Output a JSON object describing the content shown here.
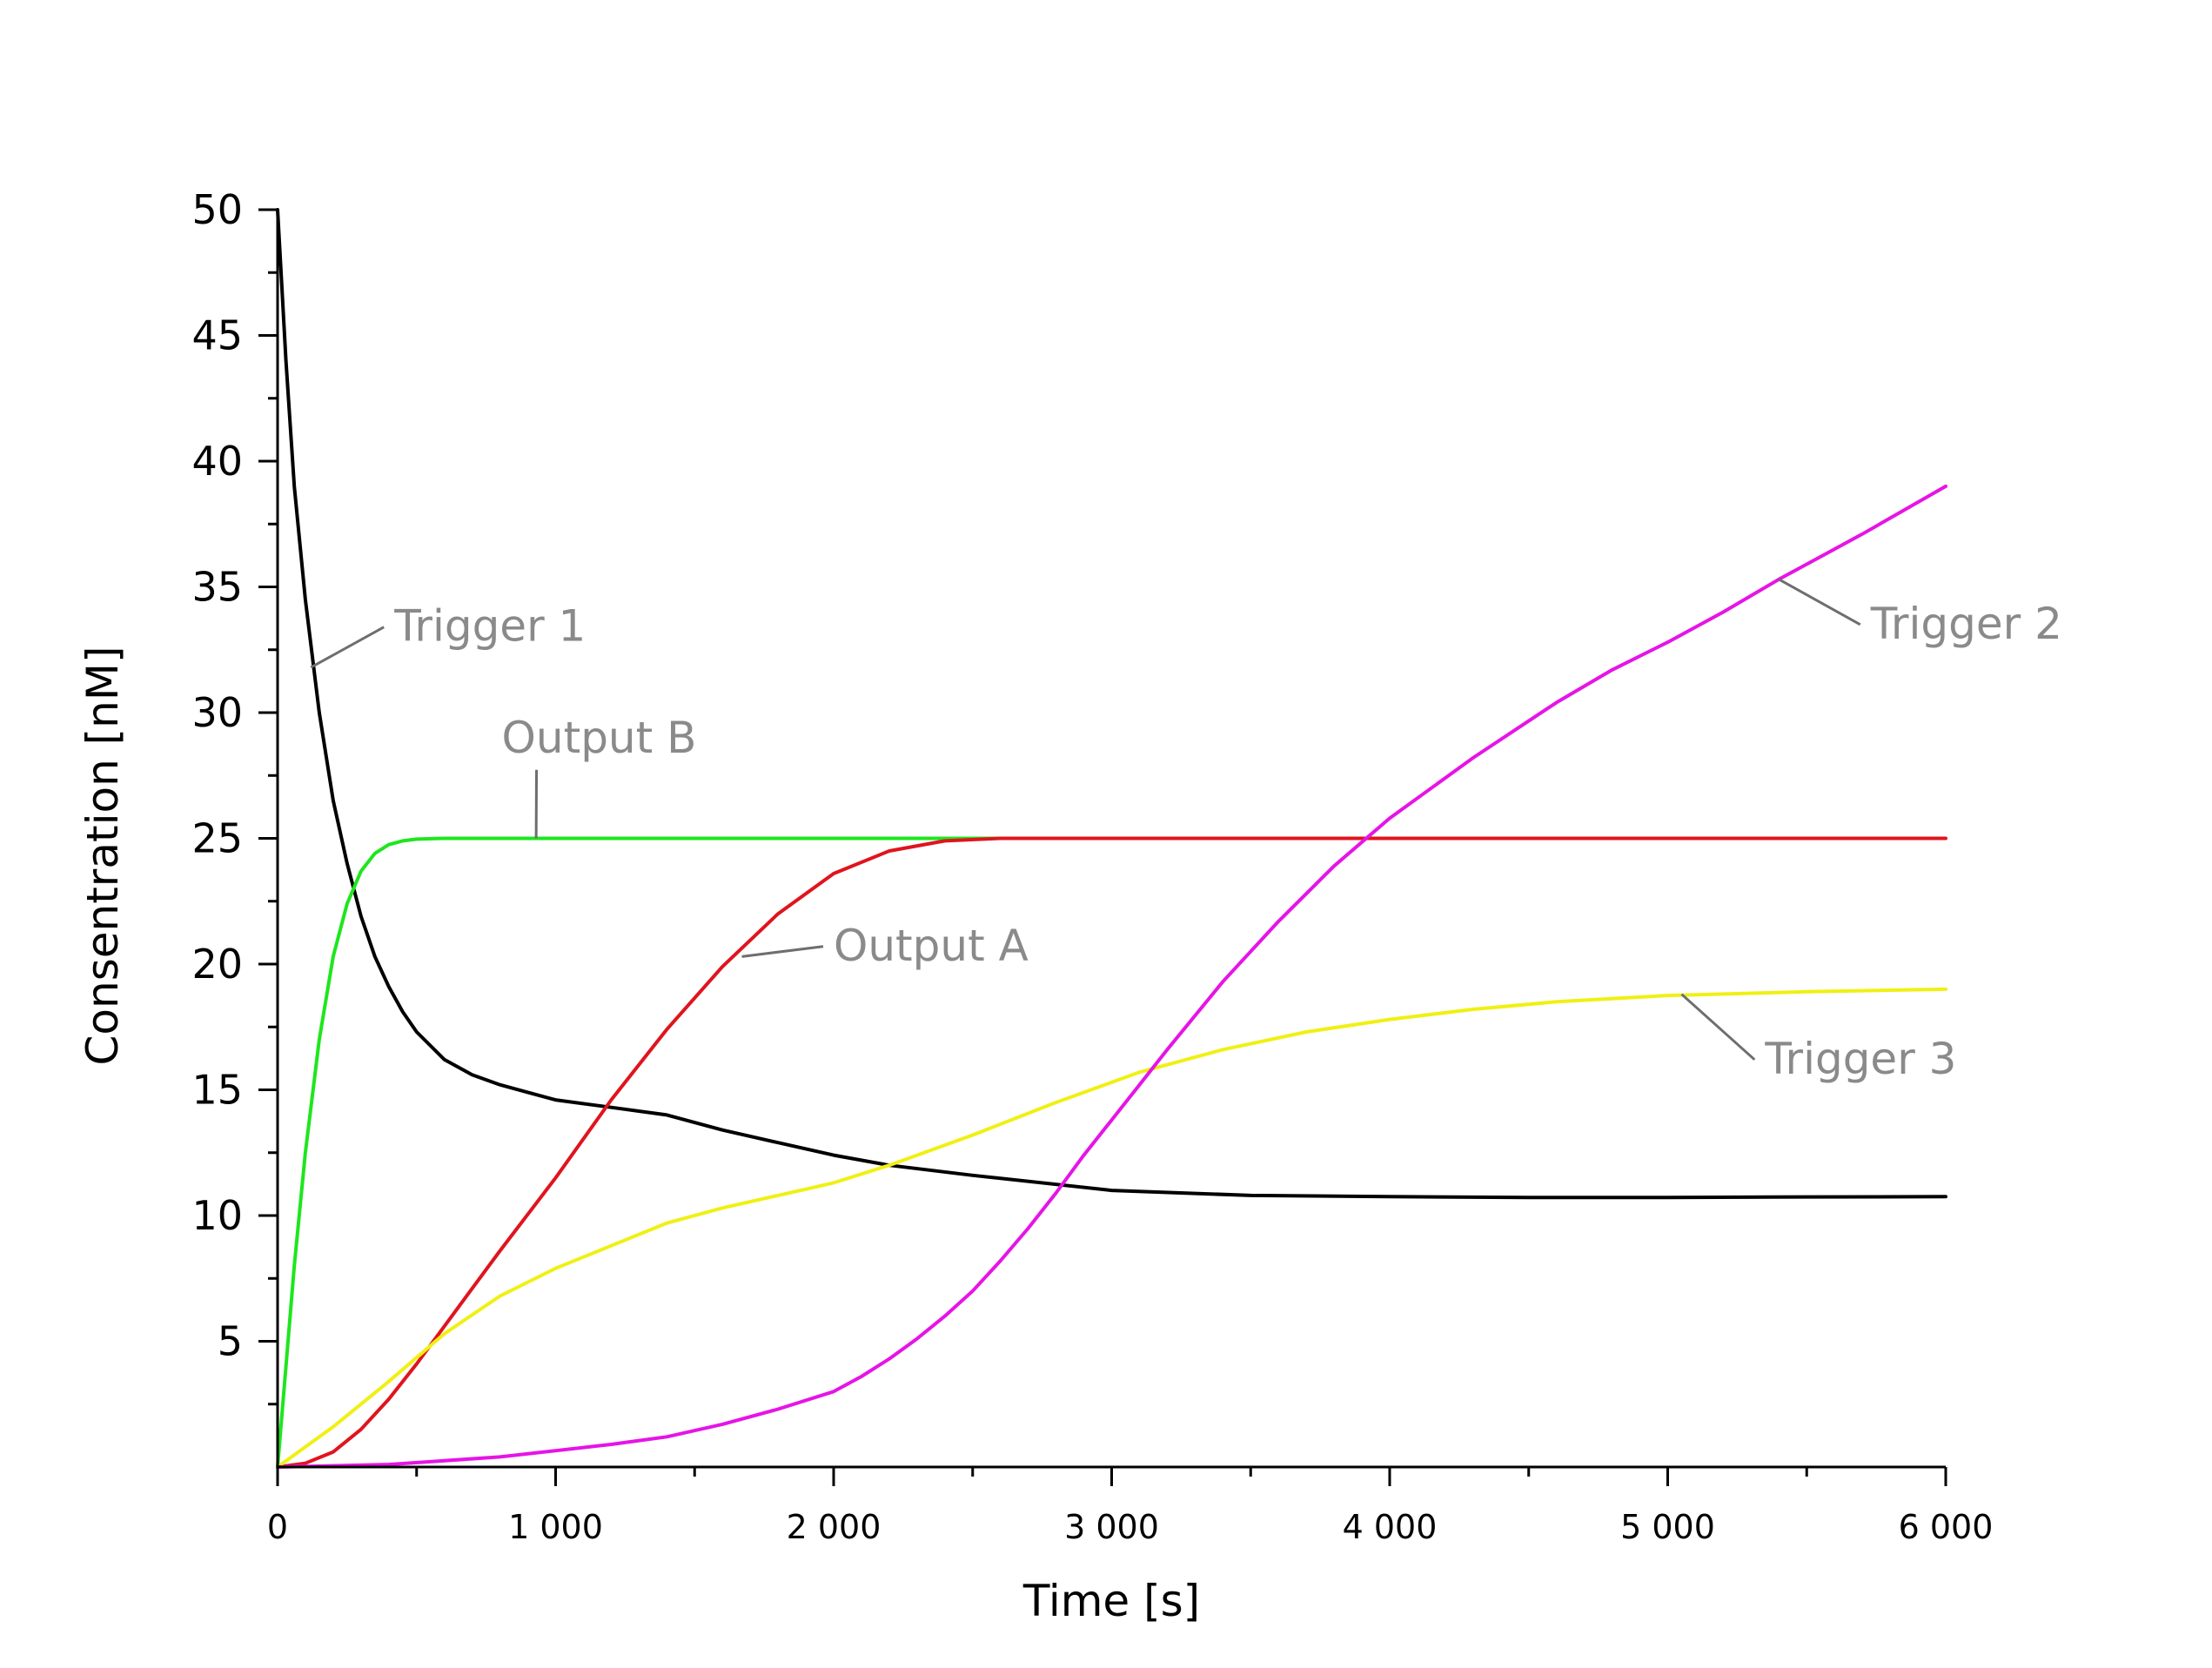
{
  "chart_data": {
    "type": "line",
    "title": "",
    "xlabel": "Time [s]",
    "ylabel": "Consentration [nM]",
    "xlim": [
      0,
      6000
    ],
    "ylim": [
      0,
      50
    ],
    "xticks": [
      0,
      1000,
      2000,
      3000,
      4000,
      5000,
      6000
    ],
    "xtick_labels": [
      "0",
      "1 000",
      "2 000",
      "3 000",
      "4 000",
      "5 000",
      "6 000"
    ],
    "yticks": [
      5,
      10,
      15,
      20,
      25,
      30,
      35,
      40,
      45,
      50
    ],
    "ytick_labels": [
      "5",
      "10",
      "15",
      "20",
      "25",
      "30",
      "35",
      "40",
      "45",
      "50"
    ],
    "grid": false,
    "legend": "none",
    "series": [
      {
        "name": "Trigger 1",
        "color": "#000000",
        "x": [
          0,
          30,
          60,
          100,
          150,
          200,
          250,
          300,
          350,
          400,
          450,
          500,
          600,
          700,
          800,
          900,
          1000,
          1200,
          1400,
          1600,
          1800,
          2000,
          2200,
          2500,
          3000,
          3500,
          4000,
          4500,
          5000,
          5500,
          6000
        ],
        "y": [
          50,
          44,
          39,
          34.5,
          30,
          26.5,
          24,
          21.9,
          20.3,
          19.1,
          18.1,
          17.3,
          16.2,
          15.6,
          15.2,
          14.9,
          14.6,
          14.3,
          14.0,
          13.4,
          12.9,
          12.4,
          12.0,
          11.6,
          11.0,
          10.8,
          10.75,
          10.72,
          10.72,
          10.74,
          10.75
        ]
      },
      {
        "name": "Output B",
        "color": "#1ee61e",
        "x": [
          0,
          30,
          60,
          100,
          150,
          200,
          250,
          300,
          350,
          400,
          450,
          500,
          600,
          700,
          800,
          1000,
          1500,
          2000,
          2500,
          3000
        ],
        "y": [
          0,
          4,
          8,
          12.5,
          17,
          20.3,
          22.4,
          23.7,
          24.4,
          24.75,
          24.9,
          24.97,
          25,
          25,
          25,
          25,
          25,
          25,
          25,
          25
        ]
      },
      {
        "name": "Output A",
        "color": "#e0141e",
        "x": [
          0,
          100,
          200,
          300,
          400,
          500,
          600,
          700,
          800,
          1000,
          1200,
          1400,
          1600,
          1800,
          2000,
          2200,
          2400,
          2600,
          3000,
          4000,
          5000,
          6000
        ],
        "y": [
          0,
          0.15,
          0.6,
          1.5,
          2.7,
          4.1,
          5.6,
          7.1,
          8.6,
          11.5,
          14.6,
          17.4,
          19.9,
          22.0,
          23.6,
          24.5,
          24.9,
          25,
          25,
          25,
          25,
          25
        ]
      },
      {
        "name": "Trigger 3",
        "color": "#f0f014",
        "x": [
          0,
          200,
          400,
          600,
          800,
          1000,
          1200,
          1400,
          1600,
          1800,
          2000,
          2200,
          2500,
          2800,
          3100,
          3400,
          3700,
          4000,
          4300,
          4600,
          5000,
          5500,
          6000
        ],
        "y": [
          0,
          1.6,
          3.4,
          5.3,
          6.8,
          7.9,
          8.8,
          9.7,
          10.3,
          10.8,
          11.3,
          12.0,
          13.2,
          14.5,
          15.7,
          16.6,
          17.3,
          17.8,
          18.2,
          18.5,
          18.75,
          18.9,
          19.0
        ]
      },
      {
        "name": "Trigger 2",
        "color": "#e614e6",
        "x": [
          0,
          400,
          800,
          1200,
          1400,
          1600,
          1800,
          2000,
          2100,
          2200,
          2300,
          2400,
          2500,
          2600,
          2700,
          2800,
          2900,
          3000,
          3100,
          3200,
          3400,
          3600,
          3800,
          4000,
          4300,
          4600,
          4800,
          5000,
          5200,
          5400,
          5700,
          6000
        ],
        "y": [
          0,
          0.1,
          0.4,
          0.9,
          1.2,
          1.7,
          2.3,
          3.0,
          3.6,
          4.3,
          5.1,
          6.0,
          7.0,
          8.2,
          9.5,
          10.9,
          12.4,
          13.8,
          15.2,
          16.6,
          19.3,
          21.7,
          23.9,
          25.8,
          28.2,
          30.4,
          31.7,
          32.8,
          34.0,
          35.3,
          37.1,
          39.0
        ]
      }
    ],
    "annotations": [
      {
        "text": "Trigger 1",
        "series": "Trigger 1",
        "x": 120,
        "y": 31.8,
        "label_x": 420,
        "label_y": 33.4
      },
      {
        "text": "Output B",
        "series": "Output B",
        "x": 930,
        "y": 25.0,
        "label_x": 900,
        "label_y": 28.0
      },
      {
        "text": "Output A",
        "series": "Output A",
        "x": 1670,
        "y": 20.3,
        "label_x": 2000,
        "label_y": 20.7
      },
      {
        "text": "Trigger 3",
        "series": "Trigger 3",
        "x": 5050,
        "y": 18.8,
        "label_x": 5350,
        "label_y": 16.2
      },
      {
        "text": "Trigger 2",
        "series": "Trigger 2",
        "x": 5400,
        "y": 35.3,
        "label_x": 5730,
        "label_y": 33.5
      }
    ]
  }
}
